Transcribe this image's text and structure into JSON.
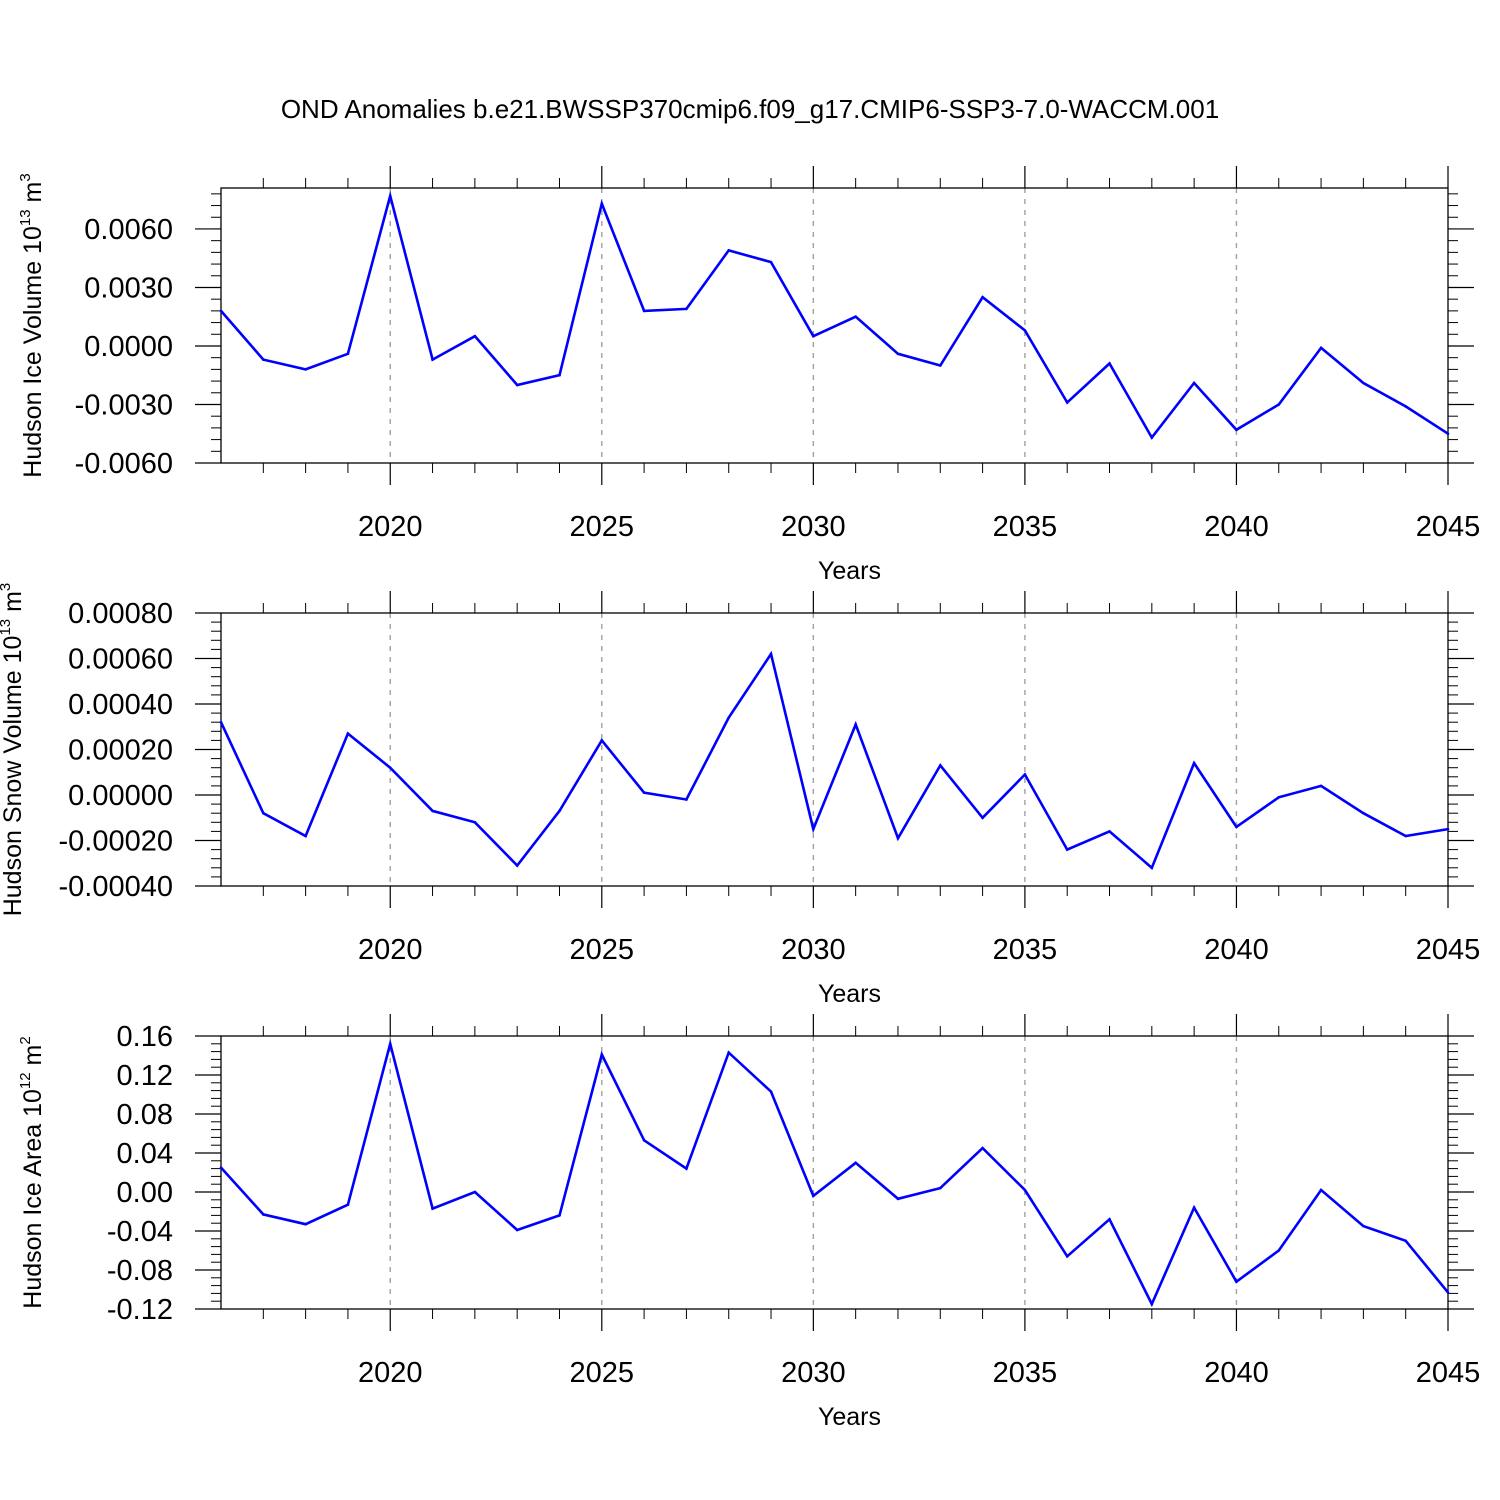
{
  "title": "OND Anomalies b.e21.BWSSP370cmip6.f09_g17.CMIP6-SSP3-7.0-WACCM.001",
  "colors": {
    "line": "#0000ff",
    "axis": "#000000",
    "grid": "#a0a0a0"
  },
  "chart_data": [
    {
      "type": "line",
      "name": "ice-volume",
      "ylabel": {
        "text": "Hudson Ice Volume 10",
        "exp": "13",
        "unit": " m",
        "unit_exp": "3"
      },
      "xlabel": "Years",
      "xlim": [
        2016,
        2045
      ],
      "ylim": [
        -0.006,
        0.0081
      ],
      "yticks": [
        -0.006,
        -0.003,
        0.0,
        0.003,
        0.006
      ],
      "ytick_labels": [
        "-0.0060",
        "-0.0030",
        "0.0000",
        "0.0030",
        "0.0060"
      ],
      "xticks": [
        2020,
        2025,
        2030,
        2035,
        2040,
        2045
      ],
      "xtick_labels": [
        "2020",
        "2025",
        "2030",
        "2035",
        "2040",
        "2045"
      ],
      "grid": "vertical dashed at major x ticks",
      "x": [
        2016,
        2017,
        2018,
        2019,
        2020,
        2021,
        2022,
        2023,
        2024,
        2025,
        2026,
        2027,
        2028,
        2029,
        2030,
        2031,
        2032,
        2033,
        2034,
        2035,
        2036,
        2037,
        2038,
        2039,
        2040,
        2041,
        2042,
        2043,
        2044,
        2045
      ],
      "y": [
        0.0018,
        -0.0007,
        -0.0012,
        -0.0004,
        0.0077,
        -0.0007,
        0.0005,
        -0.002,
        -0.0015,
        0.0073,
        0.0018,
        0.0019,
        0.0049,
        0.0043,
        0.0005,
        0.0015,
        -0.0004,
        -0.001,
        0.0025,
        0.0008,
        -0.0029,
        -0.0009,
        -0.0047,
        -0.0019,
        -0.0043,
        -0.003,
        -0.0001,
        -0.0019,
        -0.0031,
        -0.0045
      ]
    },
    {
      "type": "line",
      "name": "snow-volume",
      "ylabel": {
        "text": "Hudson Snow Volume 10",
        "exp": "13",
        "unit": " m",
        "unit_exp": "3"
      },
      "xlabel": "Years",
      "xlim": [
        2016,
        2045
      ],
      "ylim": [
        -0.0004,
        0.0008
      ],
      "yticks": [
        -0.0004,
        -0.0002,
        0.0,
        0.0002,
        0.0004,
        0.0006,
        0.0008
      ],
      "ytick_labels": [
        "-0.00040",
        "-0.00020",
        "0.00000",
        "0.00020",
        "0.00040",
        "0.00060",
        "0.00080"
      ],
      "xticks": [
        2020,
        2025,
        2030,
        2035,
        2040,
        2045
      ],
      "xtick_labels": [
        "2020",
        "2025",
        "2030",
        "2035",
        "2040",
        "2045"
      ],
      "grid": "vertical dashed at major x ticks",
      "x": [
        2016,
        2017,
        2018,
        2019,
        2020,
        2021,
        2022,
        2023,
        2024,
        2025,
        2026,
        2027,
        2028,
        2029,
        2030,
        2031,
        2032,
        2033,
        2034,
        2035,
        2036,
        2037,
        2038,
        2039,
        2040,
        2041,
        2042,
        2043,
        2044,
        2045
      ],
      "y": [
        0.00032,
        -8e-05,
        -0.00018,
        0.00027,
        0.00012,
        -7e-05,
        -0.00012,
        -0.00031,
        -7e-05,
        0.00024,
        1e-05,
        -2e-05,
        0.00034,
        0.00062,
        -0.00015,
        0.00031,
        -0.00019,
        0.00013,
        -0.0001,
        9e-05,
        -0.00024,
        -0.00016,
        -0.00032,
        0.00014,
        -0.00014,
        -1e-05,
        4e-05,
        -8e-05,
        -0.00018,
        -0.00015
      ]
    },
    {
      "type": "line",
      "name": "ice-area",
      "ylabel": {
        "text": "Hudson Ice Area 10",
        "exp": "12",
        "unit": " m",
        "unit_exp": "2"
      },
      "xlabel": "Years",
      "xlim": [
        2016,
        2045
      ],
      "ylim": [
        -0.12,
        0.16
      ],
      "yticks": [
        -0.12,
        -0.08,
        -0.04,
        0.0,
        0.04,
        0.08,
        0.12,
        0.16
      ],
      "ytick_labels": [
        "-0.12",
        "-0.08",
        "-0.04",
        "0.00",
        "0.04",
        "0.08",
        "0.12",
        "0.16"
      ],
      "xticks": [
        2020,
        2025,
        2030,
        2035,
        2040,
        2045
      ],
      "xtick_labels": [
        "2020",
        "2025",
        "2030",
        "2035",
        "2040",
        "2045"
      ],
      "grid": "vertical dashed at major x ticks",
      "x": [
        2016,
        2017,
        2018,
        2019,
        2020,
        2021,
        2022,
        2023,
        2024,
        2025,
        2026,
        2027,
        2028,
        2029,
        2030,
        2031,
        2032,
        2033,
        2034,
        2035,
        2036,
        2037,
        2038,
        2039,
        2040,
        2041,
        2042,
        2043,
        2044,
        2045
      ],
      "y": [
        0.025,
        -0.023,
        -0.033,
        -0.013,
        0.152,
        -0.017,
        0.0,
        -0.039,
        -0.024,
        0.141,
        0.053,
        0.024,
        0.143,
        0.103,
        -0.004,
        0.03,
        -0.007,
        0.004,
        0.045,
        0.002,
        -0.066,
        -0.028,
        -0.115,
        -0.016,
        -0.092,
        -0.06,
        0.002,
        -0.035,
        -0.05,
        -0.103
      ]
    }
  ]
}
